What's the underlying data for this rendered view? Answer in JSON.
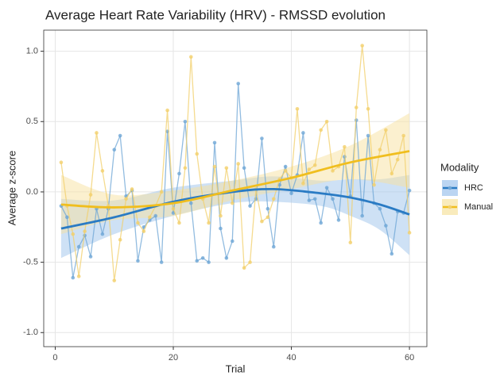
{
  "chart_data": {
    "type": "line",
    "title": "Average Heart Rate Variability (HRV) - RMSSD evolution",
    "x_label": "Trial",
    "y_label": "Average z-score",
    "legend_title": "Modality",
    "legend_position": "right",
    "grid": true,
    "xlim": [
      -1.95,
      62.95
    ],
    "ylim": [
      -1.1,
      1.15
    ],
    "xticks": [
      0,
      20,
      40,
      60
    ],
    "yticks": [
      {
        "value": -1,
        "label": "-1.0"
      },
      {
        "value": -0.5,
        "label": "-0.5"
      },
      {
        "value": 0,
        "label": "0.0"
      },
      {
        "value": 0.5,
        "label": "0.5"
      },
      {
        "value": 1,
        "label": "1.0"
      }
    ],
    "x": [
      1,
      2,
      3,
      4,
      5,
      6,
      7,
      8,
      9,
      10,
      11,
      12,
      13,
      14,
      15,
      16,
      17,
      18,
      19,
      20,
      21,
      22,
      23,
      24,
      25,
      26,
      27,
      28,
      29,
      30,
      31,
      32,
      33,
      34,
      35,
      36,
      37,
      38,
      39,
      40,
      41,
      42,
      43,
      44,
      45,
      46,
      47,
      48,
      49,
      50,
      51,
      52,
      53,
      54,
      55,
      56,
      57,
      58,
      59,
      60
    ],
    "series": [
      {
        "name": "HRC",
        "color": "#2a7bc4",
        "point_color": "#6ea6d6",
        "band_color": "#9ec3ec",
        "values": [
          -0.1,
          -0.18,
          -0.61,
          -0.39,
          -0.31,
          -0.46,
          -0.12,
          -0.3,
          -0.12,
          0.3,
          0.4,
          -0.03,
          0.01,
          -0.49,
          -0.25,
          -0.2,
          -0.17,
          -0.5,
          0.43,
          -0.15,
          0.13,
          0.5,
          -0.08,
          -0.49,
          -0.47,
          -0.5,
          0.35,
          -0.26,
          -0.47,
          -0.35,
          0.77,
          0.17,
          -0.1,
          -0.05,
          0.38,
          -0.12,
          -0.39,
          0.05,
          0.18,
          -0.01,
          0.12,
          0.42,
          -0.06,
          -0.05,
          -0.22,
          0.03,
          -0.05,
          -0.2,
          0.25,
          -0.03,
          0.51,
          -0.17,
          0.4,
          -0.08,
          -0.12,
          -0.24,
          -0.44,
          -0.14,
          -0.15,
          0.01
        ],
        "smooth": {
          "x": [
            1,
            10,
            20,
            30,
            37,
            45,
            50,
            55,
            60
          ],
          "values": [
            -0.26,
            -0.18,
            -0.07,
            0.0,
            0.02,
            -0.01,
            -0.04,
            -0.09,
            -0.16
          ],
          "lower": [
            -0.47,
            -0.3,
            -0.17,
            -0.08,
            -0.07,
            -0.1,
            -0.17,
            -0.27,
            -0.45
          ],
          "upper": [
            -0.05,
            -0.06,
            0.03,
            0.08,
            0.11,
            0.08,
            0.09,
            0.09,
            0.12
          ]
        }
      },
      {
        "name": "Manual",
        "color": "#f0be1e",
        "point_color": "#f2cf6a",
        "band_color": "#f7e2a0",
        "values": [
          0.21,
          -0.1,
          -0.3,
          -0.6,
          -0.28,
          -0.02,
          0.42,
          0.15,
          -0.1,
          -0.63,
          -0.34,
          -0.05,
          0.02,
          -0.22,
          -0.28,
          -0.18,
          -0.1,
          0.0,
          0.58,
          -0.12,
          -0.22,
          0.17,
          0.96,
          0.27,
          -0.05,
          -0.22,
          0.18,
          -0.17,
          0.17,
          -0.08,
          0.2,
          -0.54,
          -0.5,
          0.02,
          -0.21,
          -0.18,
          -0.05,
          0.09,
          0.15,
          0.1,
          0.59,
          0.06,
          0.16,
          0.19,
          0.44,
          0.5,
          0.15,
          0.18,
          0.32,
          -0.36,
          0.6,
          1.04,
          0.59,
          0.05,
          0.3,
          0.44,
          0.13,
          0.23,
          0.4,
          -0.29
        ],
        "smooth": {
          "x": [
            1,
            10,
            20,
            30,
            40,
            50,
            60
          ],
          "values": [
            -0.09,
            -0.11,
            -0.08,
            0.01,
            0.1,
            0.21,
            0.29
          ],
          "lower": [
            -0.3,
            -0.2,
            -0.17,
            -0.06,
            0.02,
            0.09,
            0.03
          ],
          "upper": [
            0.12,
            -0.02,
            0.01,
            0.08,
            0.18,
            0.33,
            0.56
          ]
        }
      }
    ]
  }
}
